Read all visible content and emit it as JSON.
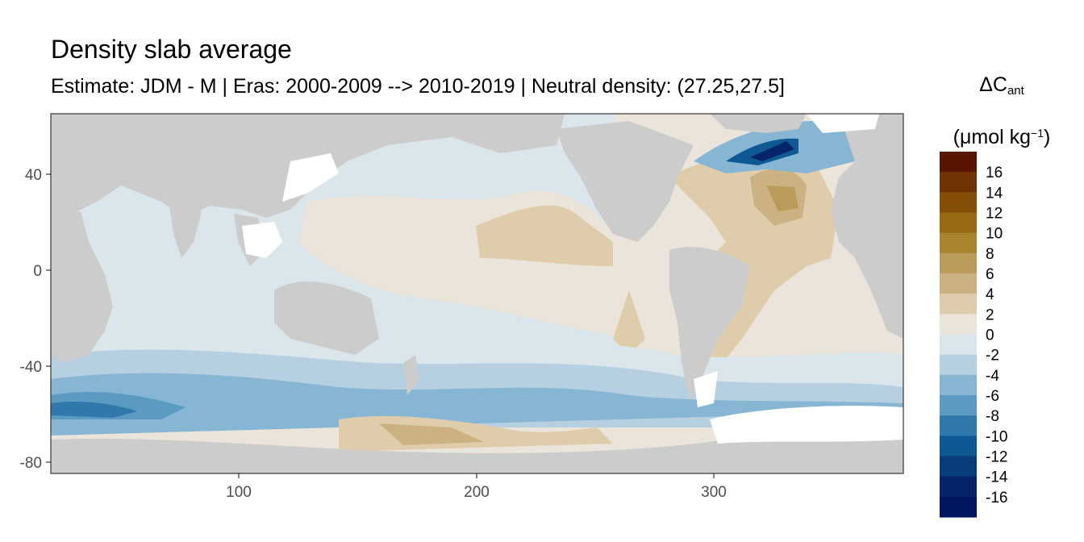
{
  "title": "Density slab average",
  "subtitle": "Estimate: JDM - M | Eras: 2000-2009 --> 2010-2019 | Neutral density: (27.25,27.5]",
  "legend": {
    "symbol": "ΔC",
    "symbol_sub": "ant",
    "unit_prefix": "(μmol kg",
    "unit_sup": "−1",
    "unit_suffix": ")",
    "bins": [
      {
        "label": "16",
        "color": "#5a1500"
      },
      {
        "label": "14",
        "color": "#703302"
      },
      {
        "label": "12",
        "color": "#854e08"
      },
      {
        "label": "10",
        "color": "#986a14"
      },
      {
        "label": "8",
        "color": "#a98532"
      },
      {
        "label": "6",
        "color": "#ba9b5a"
      },
      {
        "label": "4",
        "color": "#ccb183"
      },
      {
        "label": "2",
        "color": "#dfccab"
      },
      {
        "label": "0",
        "color": "#eae4da"
      },
      {
        "label": "-2",
        "color": "#dae5ec"
      },
      {
        "label": "-4",
        "color": "#b6d0e2"
      },
      {
        "label": "-6",
        "color": "#86b6d4"
      },
      {
        "label": "-8",
        "color": "#5b9ac1"
      },
      {
        "label": "-10",
        "color": "#3079ac"
      },
      {
        "label": "-12",
        "color": "#0e5994"
      },
      {
        "label": "-14",
        "color": "#073d7a"
      },
      {
        "label": "-16",
        "color": "#06246a"
      },
      {
        "label": "",
        "color": "#011560"
      }
    ]
  },
  "axes": {
    "x_ticks": [
      "100",
      "200",
      "300"
    ],
    "y_ticks": [
      "40",
      "0",
      "-40",
      "-80"
    ]
  },
  "colors": {
    "land": "#cccccc",
    "no_data": "#ffffff",
    "panel_border": "#333333"
  }
}
